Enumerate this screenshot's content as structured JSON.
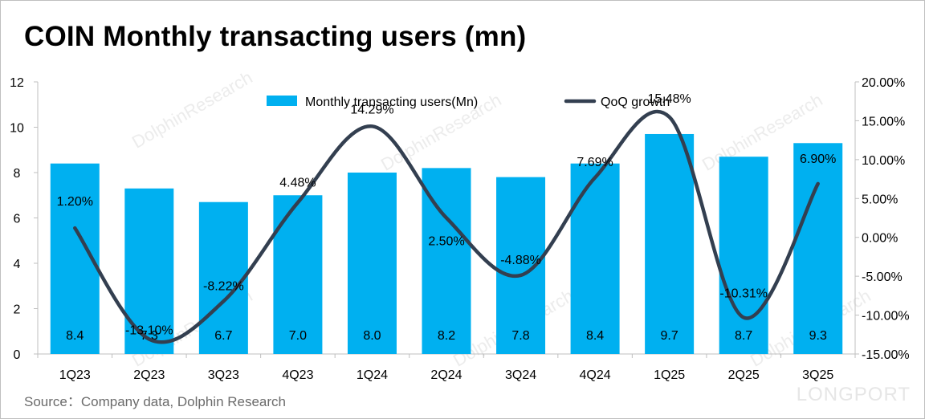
{
  "title": "COIN Monthly transacting users (mn)",
  "source": "Source：Company data, Dolphin Research",
  "watermark": "DolphinResearch",
  "logo_text": "LONGPORT",
  "colors": {
    "bar": "#00b0f0",
    "line": "#333f50",
    "axis": "#bfbfbf"
  },
  "chart_data": {
    "type": "bar",
    "categories": [
      "1Q23",
      "2Q23",
      "3Q23",
      "4Q23",
      "1Q24",
      "2Q24",
      "3Q24",
      "4Q24",
      "1Q25",
      "2Q25",
      "3Q25"
    ],
    "series": [
      {
        "name": "Monthly transacting users(Mn)",
        "type": "bar",
        "axis": "left",
        "values": [
          8.4,
          7.3,
          6.7,
          7.0,
          8.0,
          8.2,
          7.8,
          8.4,
          9.7,
          8.7,
          9.3
        ],
        "labels": [
          "8.4",
          "7.3",
          "6.7",
          "7.0",
          "8.0",
          "8.2",
          "7.8",
          "8.4",
          "9.7",
          "8.7",
          "9.3"
        ]
      },
      {
        "name": "QoQ growth",
        "type": "line",
        "axis": "right",
        "values": [
          1.2,
          -13.1,
          -8.22,
          4.48,
          14.29,
          2.5,
          -4.88,
          7.69,
          15.48,
          -10.31,
          6.9
        ],
        "labels": [
          "1.20%",
          "-13.10%",
          "-8.22%",
          "4.48%",
          "14.29%",
          "2.50%",
          "-4.88%",
          "7.69%",
          "15.48%",
          "-10.31%",
          "6.90%"
        ]
      }
    ],
    "y_left": {
      "min": 0,
      "max": 12,
      "ticks": [
        "0",
        "2",
        "4",
        "6",
        "8",
        "10",
        "12"
      ]
    },
    "y_right": {
      "min": -15,
      "max": 20,
      "ticks": [
        "-15.00%",
        "-10.00%",
        "-5.00%",
        "0.00%",
        "5.00%",
        "10.00%",
        "15.00%",
        "20.00%"
      ]
    },
    "legend_position": "top-center",
    "grid": false
  }
}
